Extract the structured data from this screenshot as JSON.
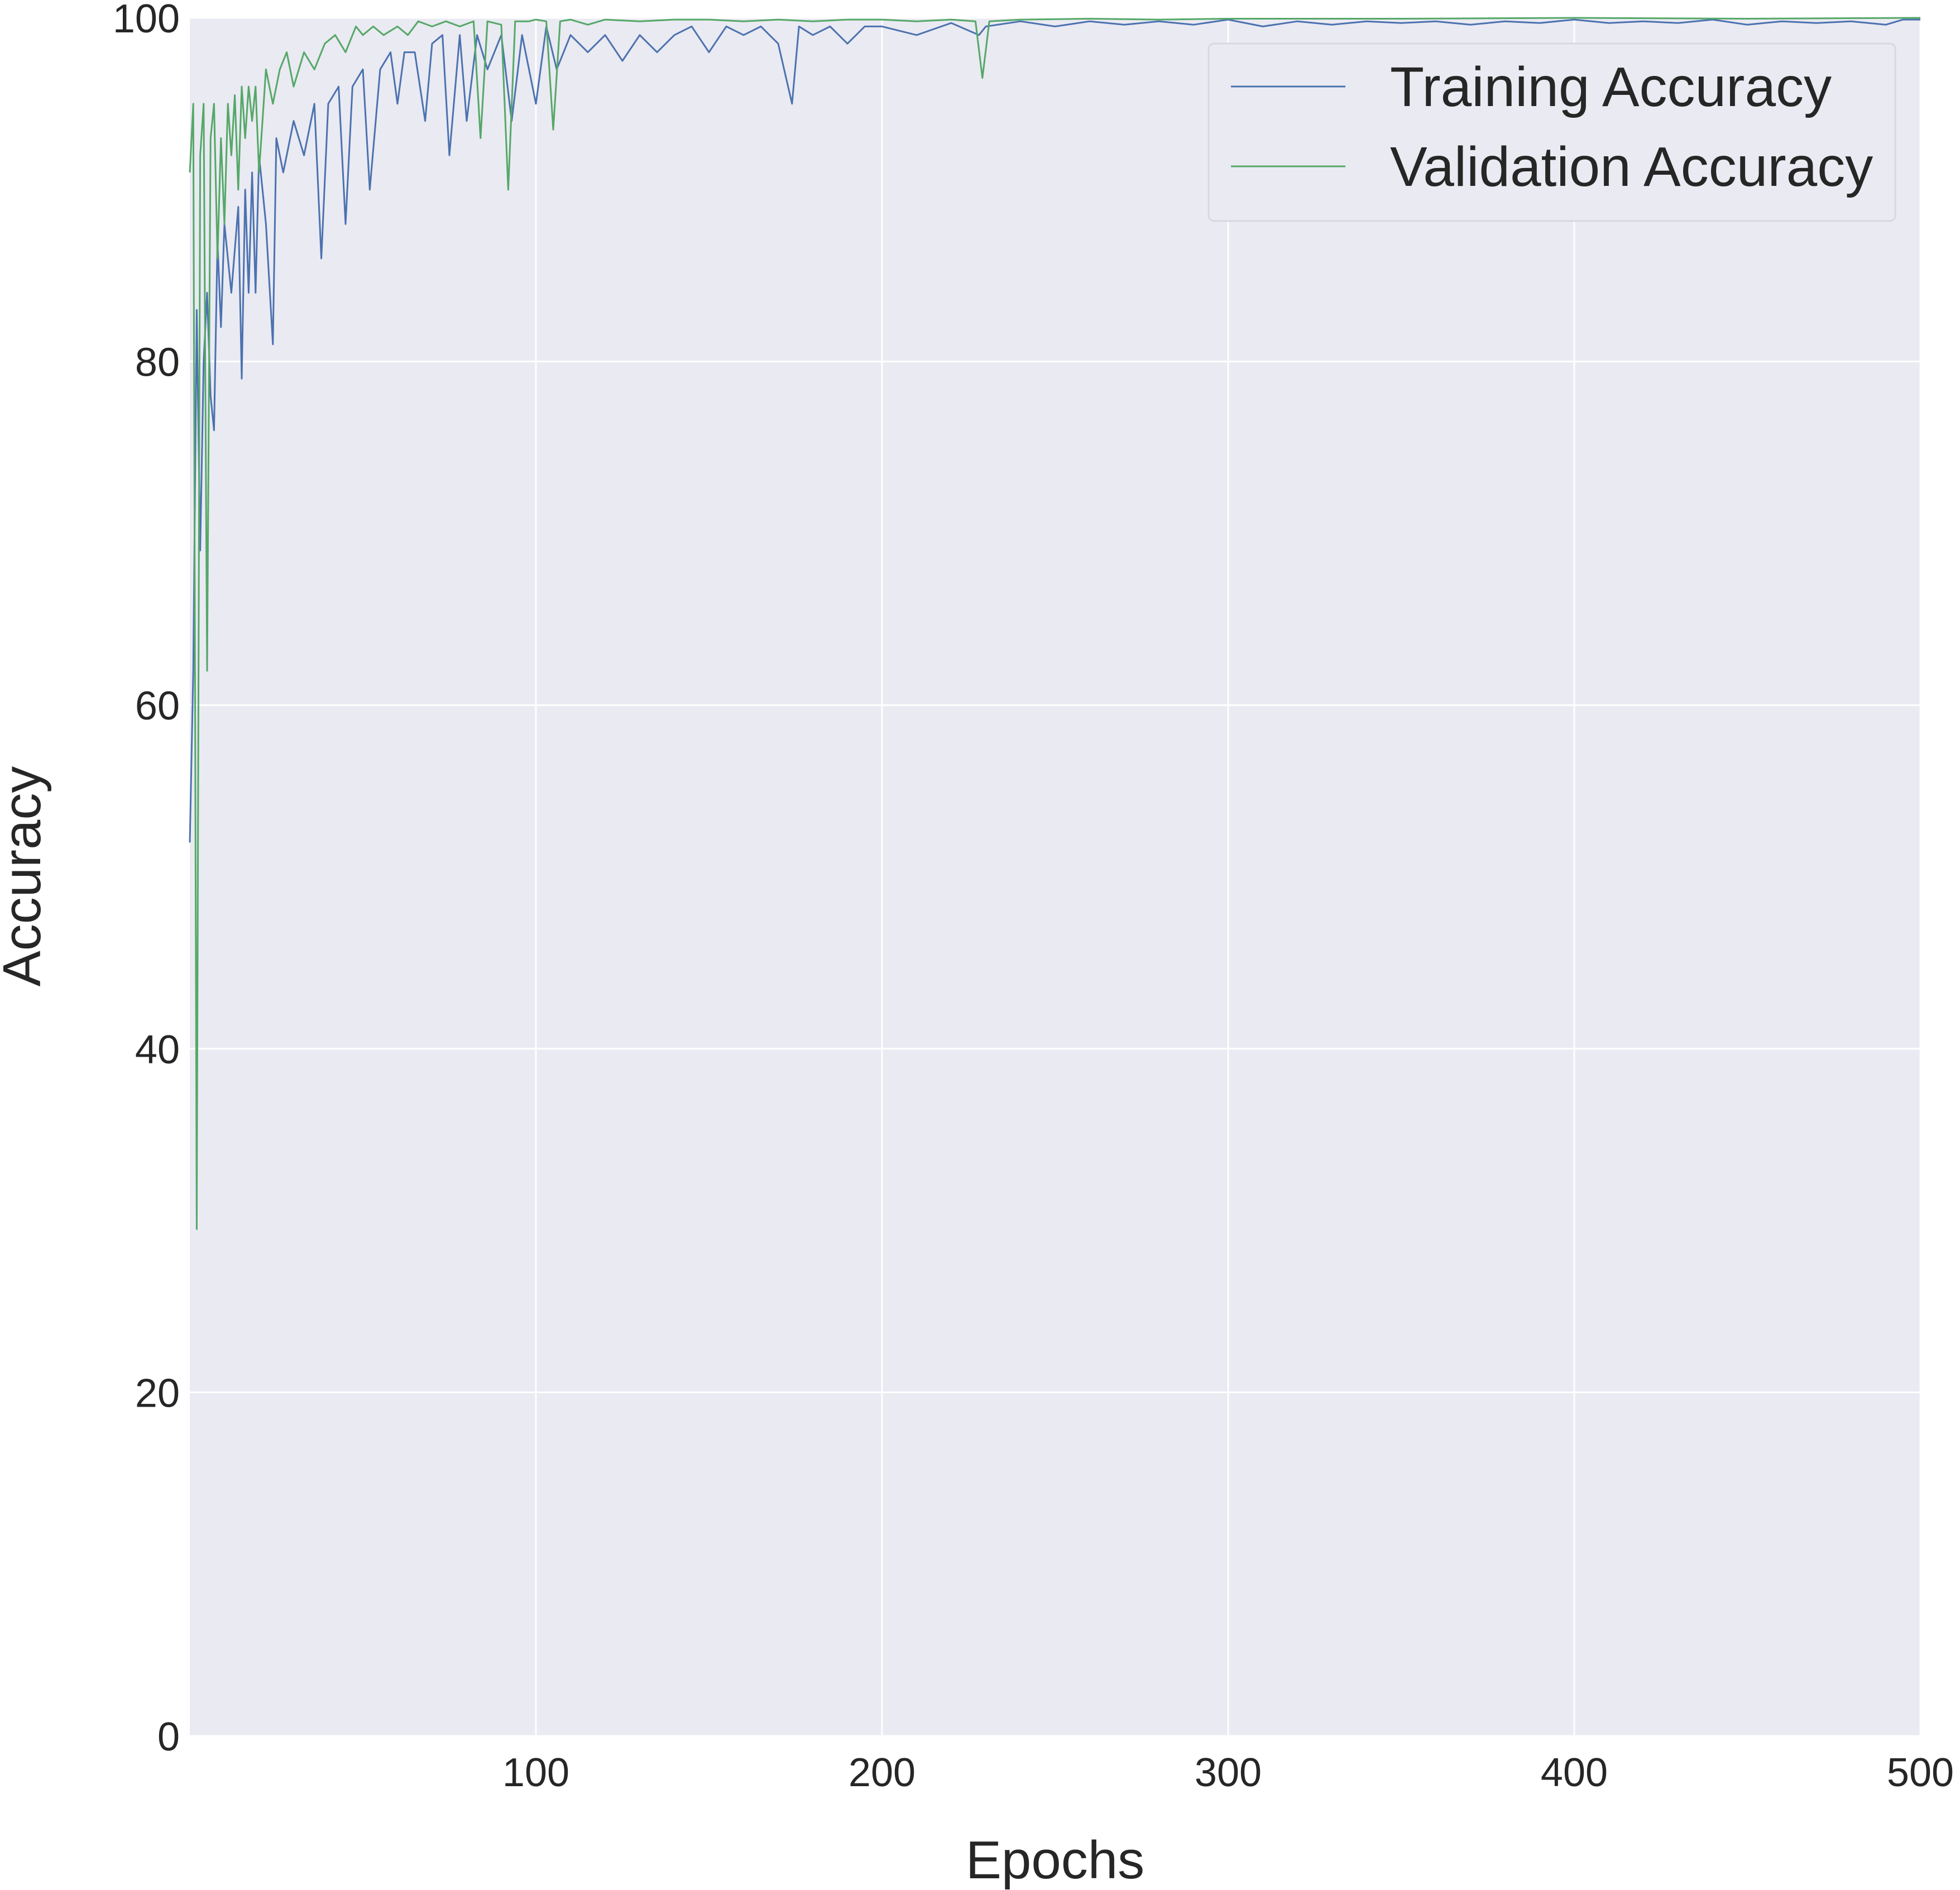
{
  "chart_data": {
    "type": "line",
    "title": "",
    "xlabel": "Epochs",
    "ylabel": "Accuracy",
    "xlim": [
      0,
      500
    ],
    "ylim": [
      0,
      100
    ],
    "xticks": [
      100,
      200,
      300,
      400,
      500
    ],
    "yticks": [
      0,
      20,
      40,
      60,
      80,
      100
    ],
    "grid": true,
    "legend_position": "top-right",
    "background": "#eaeaf2",
    "series": [
      {
        "name": "Training Accuracy",
        "color": "#4c72b0",
        "points": [
          [
            0,
            52
          ],
          [
            1,
            62
          ],
          [
            2,
            83
          ],
          [
            3,
            69
          ],
          [
            4,
            80
          ],
          [
            5,
            84
          ],
          [
            6,
            78
          ],
          [
            7,
            76
          ],
          [
            8,
            87
          ],
          [
            9,
            82
          ],
          [
            10,
            88
          ],
          [
            12,
            84
          ],
          [
            14,
            89
          ],
          [
            15,
            79
          ],
          [
            16,
            90
          ],
          [
            17,
            84
          ],
          [
            18,
            91
          ],
          [
            19,
            84
          ],
          [
            20,
            92
          ],
          [
            22,
            88
          ],
          [
            24,
            81
          ],
          [
            25,
            93
          ],
          [
            27,
            91
          ],
          [
            30,
            94
          ],
          [
            33,
            92
          ],
          [
            36,
            95
          ],
          [
            38,
            86
          ],
          [
            40,
            95
          ],
          [
            43,
            96
          ],
          [
            45,
            88
          ],
          [
            47,
            96
          ],
          [
            50,
            97
          ],
          [
            52,
            90
          ],
          [
            55,
            97
          ],
          [
            58,
            98
          ],
          [
            60,
            95
          ],
          [
            62,
            98
          ],
          [
            65,
            98
          ],
          [
            68,
            94
          ],
          [
            70,
            98.5
          ],
          [
            73,
            99
          ],
          [
            75,
            92
          ],
          [
            78,
            99
          ],
          [
            80,
            94
          ],
          [
            83,
            99
          ],
          [
            86,
            97
          ],
          [
            90,
            99
          ],
          [
            93,
            94
          ],
          [
            96,
            99
          ],
          [
            100,
            95
          ],
          [
            103,
            99.5
          ],
          [
            106,
            97
          ],
          [
            110,
            99
          ],
          [
            115,
            98
          ],
          [
            120,
            99
          ],
          [
            125,
            97.5
          ],
          [
            130,
            99
          ],
          [
            135,
            98
          ],
          [
            140,
            99
          ],
          [
            145,
            99.5
          ],
          [
            150,
            98
          ],
          [
            155,
            99.5
          ],
          [
            160,
            99
          ],
          [
            165,
            99.5
          ],
          [
            170,
            98.5
          ],
          [
            174,
            95
          ],
          [
            176,
            99.5
          ],
          [
            180,
            99
          ],
          [
            185,
            99.5
          ],
          [
            190,
            98.5
          ],
          [
            195,
            99.5
          ],
          [
            200,
            99.5
          ],
          [
            210,
            99
          ],
          [
            220,
            99.7
          ],
          [
            228,
            99
          ],
          [
            230,
            99.5
          ],
          [
            240,
            99.8
          ],
          [
            250,
            99.5
          ],
          [
            260,
            99.8
          ],
          [
            270,
            99.6
          ],
          [
            280,
            99.8
          ],
          [
            290,
            99.6
          ],
          [
            300,
            99.9
          ],
          [
            310,
            99.5
          ],
          [
            320,
            99.8
          ],
          [
            330,
            99.6
          ],
          [
            340,
            99.8
          ],
          [
            350,
            99.7
          ],
          [
            360,
            99.8
          ],
          [
            370,
            99.6
          ],
          [
            380,
            99.8
          ],
          [
            390,
            99.7
          ],
          [
            400,
            99.9
          ],
          [
            410,
            99.7
          ],
          [
            420,
            99.8
          ],
          [
            430,
            99.7
          ],
          [
            440,
            99.9
          ],
          [
            450,
            99.6
          ],
          [
            460,
            99.8
          ],
          [
            470,
            99.7
          ],
          [
            480,
            99.8
          ],
          [
            490,
            99.6
          ],
          [
            495,
            99.9
          ],
          [
            500,
            99.9
          ]
        ]
      },
      {
        "name": "Validation Accuracy",
        "color": "#55a868",
        "points": [
          [
            0,
            91
          ],
          [
            1,
            95
          ],
          [
            2,
            29.5
          ],
          [
            3,
            92
          ],
          [
            4,
            95
          ],
          [
            5,
            62
          ],
          [
            6,
            93
          ],
          [
            7,
            95
          ],
          [
            8,
            86
          ],
          [
            9,
            93
          ],
          [
            10,
            88
          ],
          [
            11,
            95
          ],
          [
            12,
            92
          ],
          [
            13,
            95.5
          ],
          [
            14,
            90
          ],
          [
            15,
            96
          ],
          [
            16,
            93
          ],
          [
            17,
            96
          ],
          [
            18,
            94
          ],
          [
            19,
            96
          ],
          [
            20,
            91
          ],
          [
            22,
            97
          ],
          [
            24,
            95
          ],
          [
            26,
            97
          ],
          [
            28,
            98
          ],
          [
            30,
            96
          ],
          [
            33,
            98
          ],
          [
            36,
            97
          ],
          [
            39,
            98.5
          ],
          [
            42,
            99
          ],
          [
            45,
            98
          ],
          [
            48,
            99.5
          ],
          [
            50,
            99
          ],
          [
            53,
            99.5
          ],
          [
            56,
            99
          ],
          [
            60,
            99.5
          ],
          [
            63,
            99
          ],
          [
            66,
            99.8
          ],
          [
            70,
            99.5
          ],
          [
            74,
            99.8
          ],
          [
            78,
            99.5
          ],
          [
            82,
            99.8
          ],
          [
            84,
            93
          ],
          [
            86,
            99.8
          ],
          [
            90,
            99.6
          ],
          [
            92,
            90
          ],
          [
            94,
            99.8
          ],
          [
            98,
            99.8
          ],
          [
            100,
            99.9
          ],
          [
            103,
            99.8
          ],
          [
            105,
            93.5
          ],
          [
            107,
            99.8
          ],
          [
            110,
            99.9
          ],
          [
            115,
            99.6
          ],
          [
            120,
            99.9
          ],
          [
            130,
            99.8
          ],
          [
            140,
            99.9
          ],
          [
            150,
            99.9
          ],
          [
            160,
            99.8
          ],
          [
            170,
            99.9
          ],
          [
            180,
            99.8
          ],
          [
            190,
            99.9
          ],
          [
            200,
            99.9
          ],
          [
            210,
            99.8
          ],
          [
            220,
            99.9
          ],
          [
            227,
            99.8
          ],
          [
            229,
            96.5
          ],
          [
            231,
            99.8
          ],
          [
            240,
            99.9
          ],
          [
            260,
            99.95
          ],
          [
            280,
            99.9
          ],
          [
            300,
            99.95
          ],
          [
            350,
            99.95
          ],
          [
            400,
            100
          ],
          [
            450,
            99.95
          ],
          [
            500,
            100
          ]
        ]
      }
    ]
  }
}
